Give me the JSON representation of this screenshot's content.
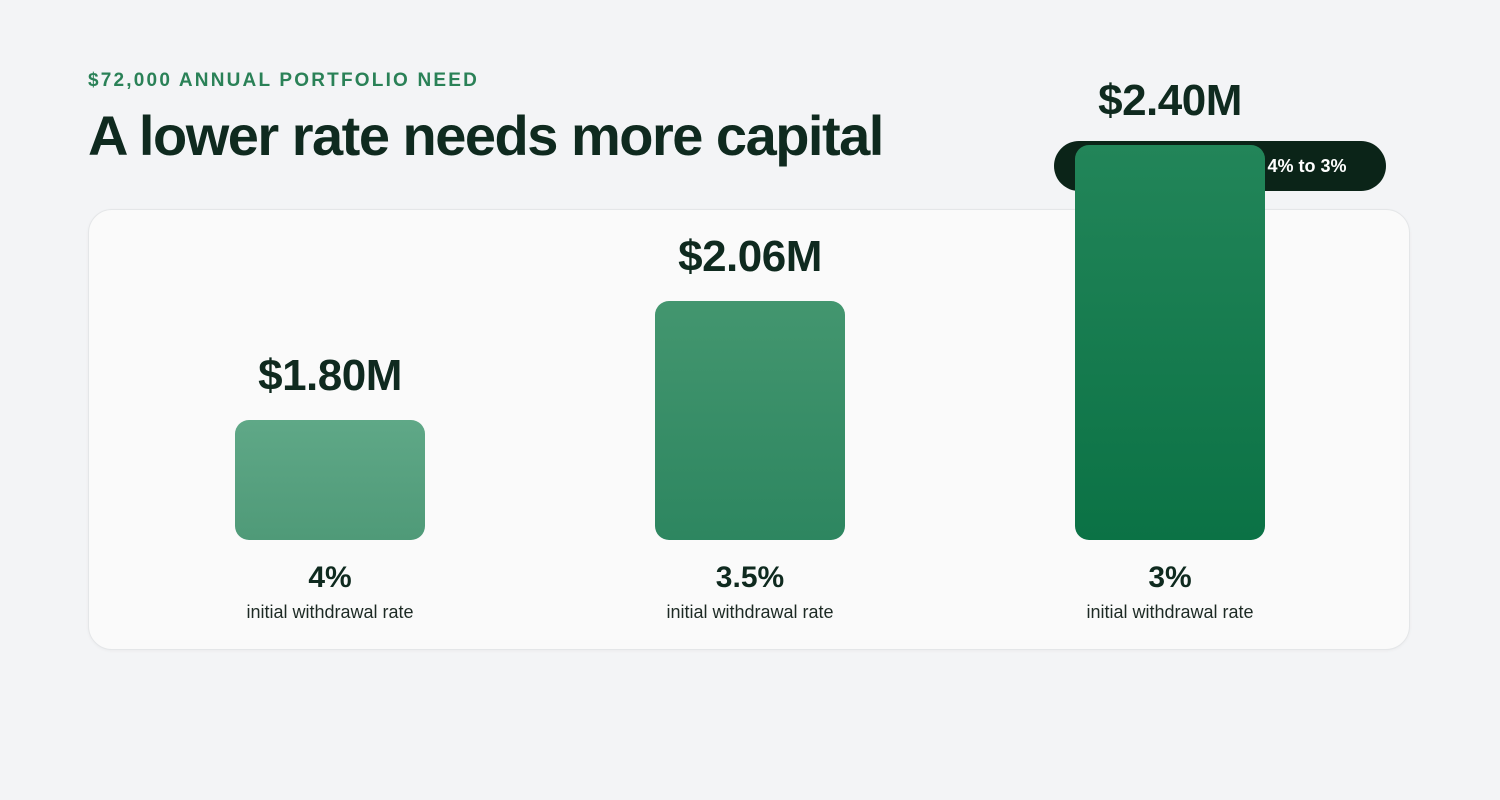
{
  "header": {
    "eyebrow": "$72,000 ANNUAL PORTFOLIO NEED",
    "title": "A lower rate needs more capital",
    "callout": "$600,000 more from 4% to 3%"
  },
  "colors": {
    "accent": "#2a8157",
    "text": "#0f2a1f",
    "callout_bg": "#0b2418",
    "bar_light": "#5fa887",
    "bar_mid": "#2d8660",
    "bar_dark": "#0b7245"
  },
  "chart_data": {
    "type": "bar",
    "categories": [
      "4%",
      "3.5%",
      "3%"
    ],
    "category_sublabel": "initial withdrawal rate",
    "values": [
      1.8,
      2.06,
      2.4
    ],
    "value_labels": [
      "$1.80M",
      "$2.06M",
      "$2.40M"
    ],
    "unit": "$M",
    "xlabel": "",
    "ylabel": "",
    "grid": false
  }
}
